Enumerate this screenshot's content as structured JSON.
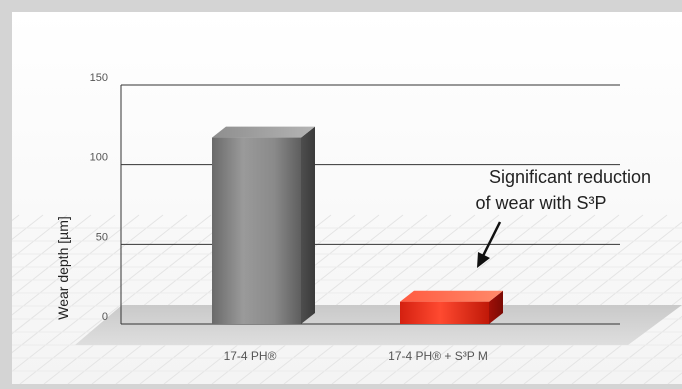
{
  "chart_data": {
    "type": "bar",
    "categories": [
      "17-4 PH®",
      "17-4 PH® + S³P M"
    ],
    "values": [
      117,
      14
    ],
    "ylabel": "Wear depth [µm]",
    "xlabel": "",
    "ylim": [
      0,
      150
    ],
    "yticks": [
      0,
      50,
      100,
      150
    ],
    "grid": true,
    "bar_colors": [
      "#7a7a7a",
      "#e83020"
    ],
    "annotation": {
      "lines": [
        "Significant reduction",
        "of wear with S³P"
      ],
      "arrow_target_category": 1
    }
  }
}
